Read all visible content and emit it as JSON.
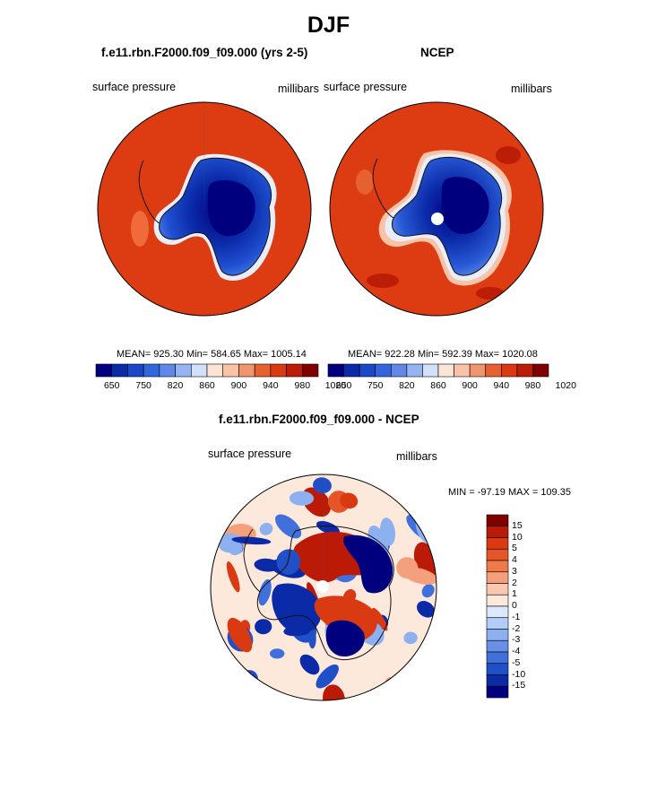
{
  "main_title": "DJF",
  "panels": {
    "model": {
      "title": "f.e11.rbn.F2000.f09_f09.000 (yrs 2-5)",
      "left_label": "surface pressure",
      "right_label": "millibars",
      "stats": "MEAN= 925.30  Min= 584.65  Max= 1005.14"
    },
    "obs": {
      "title": "NCEP",
      "left_label": "surface pressure",
      "right_label": "millibars",
      "stats": "MEAN= 922.28  Min= 592.39  Max= 1020.08"
    },
    "diff": {
      "title": "f.e11.rbn.F2000.f09_f09.000 - NCEP",
      "left_label": "surface pressure",
      "right_label": "millibars",
      "stats": "MIN = -97.19 MAX = 109.35"
    }
  },
  "colorbar_abs": {
    "colors": [
      "#00007f",
      "#0a2aa8",
      "#1a48c8",
      "#3366dd",
      "#6088e8",
      "#97b4f2",
      "#d2e0fa",
      "#fde5d6",
      "#f8c3a6",
      "#f19470",
      "#e66030",
      "#d93a12",
      "#bb1d06",
      "#800000"
    ],
    "tick_labels": [
      "650",
      "750",
      "820",
      "860",
      "900",
      "940",
      "980",
      "1020"
    ]
  },
  "colorbar_diff": {
    "colors": [
      "#800000",
      "#bb1a06",
      "#d93a12",
      "#e65528",
      "#ee7a4a",
      "#f5a07c",
      "#fac8ae",
      "#fde8dc",
      "#dce8fc",
      "#b4cdf8",
      "#8cb0f0",
      "#6890e6",
      "#4070dc",
      "#2050c8",
      "#0a2aa8",
      "#00007f"
    ],
    "tick_labels": [
      "15",
      "10",
      "5",
      "4",
      "3",
      "2",
      "1",
      "0",
      "-1",
      "-2",
      "-3",
      "-4",
      "-5",
      "-10",
      "-15"
    ]
  }
}
